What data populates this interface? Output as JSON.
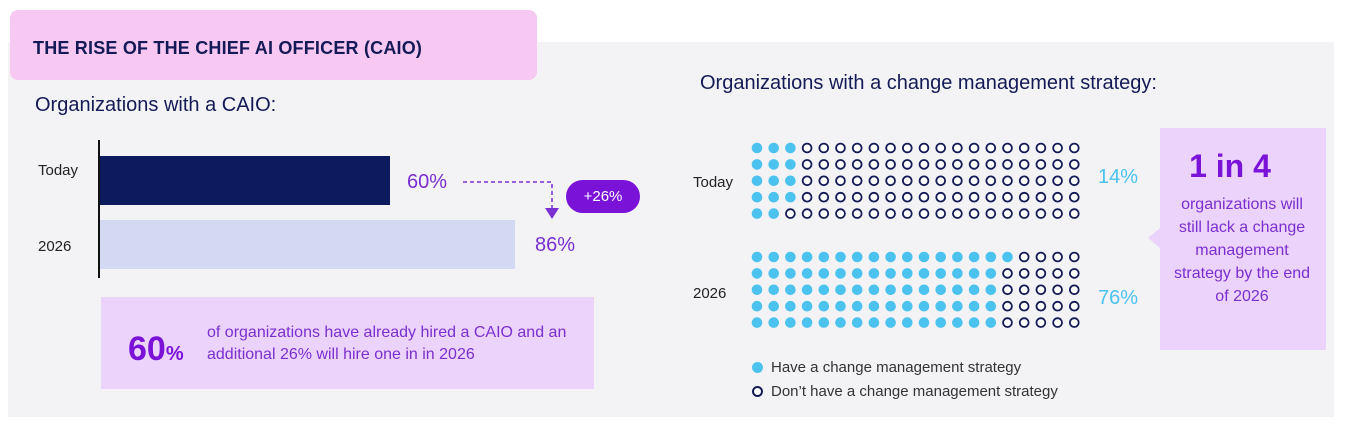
{
  "title": "THE RISE OF THE CHIEF AI OFFICER (CAIO)",
  "colors": {
    "dark_bar": "#0d1a5e",
    "light_bar": "#d3d9f1",
    "accent_purple": "#7a12d8",
    "dot_blue": "#4bc3ee",
    "dot_outline": "#141a55"
  },
  "left": {
    "heading": "Organizations with a CAIO:",
    "change_badge": "+26%",
    "callout": {
      "big_number": "60",
      "big_unit": "%",
      "text": "of organizations have already hired a CAIO and an additional 26% will hire one in in 2026"
    }
  },
  "right": {
    "heading": "Organizations with a change management strategy:",
    "side_box": {
      "big": "1 in 4",
      "text": "organizations will still lack a change management strategy by the end of 2026"
    },
    "legend": [
      {
        "label": "Have a change management strategy",
        "filled": true
      },
      {
        "label": "Don’t have a change management strategy",
        "filled": false
      }
    ]
  },
  "chart_data": [
    {
      "type": "bar",
      "orientation": "horizontal",
      "title": "Organizations with a CAIO:",
      "categories": [
        "Today",
        "2026"
      ],
      "values": [
        60,
        86
      ],
      "value_labels": [
        "60%",
        "86%"
      ],
      "xlim": [
        0,
        100
      ]
    },
    {
      "type": "waffle",
      "title": "Organizations with a change management strategy:",
      "categories": [
        "Today",
        "2026"
      ],
      "values": [
        14,
        76
      ],
      "value_labels": [
        "14%",
        "76%"
      ],
      "grid": {
        "rows": 5,
        "cols": 20,
        "fill_order": "column-major"
      }
    }
  ]
}
